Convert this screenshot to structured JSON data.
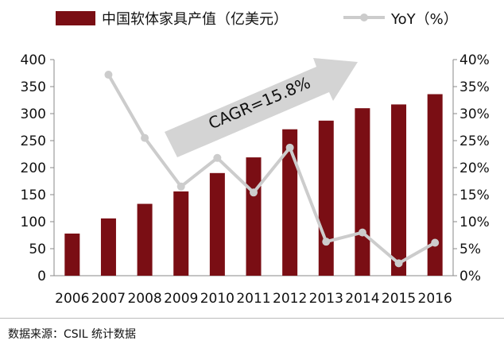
{
  "chart_data": {
    "type": "bar",
    "categories": [
      "2006",
      "2007",
      "2008",
      "2009",
      "2010",
      "2011",
      "2012",
      "2013",
      "2014",
      "2015",
      "2016"
    ],
    "series": [
      {
        "name": "中国软体家具产值（亿美元）",
        "type": "bar",
        "axis": "left",
        "values": [
          78,
          106,
          133,
          156,
          190,
          219,
          271,
          287,
          310,
          317,
          336
        ]
      },
      {
        "name": "YoY（%）",
        "type": "line",
        "axis": "right",
        "values": [
          null,
          37.2,
          25.5,
          16.5,
          21.8,
          15.4,
          23.7,
          6.3,
          8.0,
          2.3,
          6.1
        ]
      }
    ],
    "yticks_left": [
      "0",
      "50",
      "100",
      "150",
      "200",
      "250",
      "300",
      "350",
      "400"
    ],
    "yticks_right": [
      "0%",
      "5%",
      "10%",
      "15%",
      "20%",
      "25%",
      "30%",
      "35%",
      "40%"
    ],
    "ylim_left": [
      0,
      400
    ],
    "ylim_right": [
      0,
      40
    ],
    "annotation": "CAGR=15.8%",
    "legend_position": "top",
    "grid": false,
    "colors": {
      "bar": "#7a0e14",
      "line": "#cccccc",
      "arrow": "#d4d4d4"
    }
  },
  "source_text": "数据来源：CSIL 统计数据"
}
